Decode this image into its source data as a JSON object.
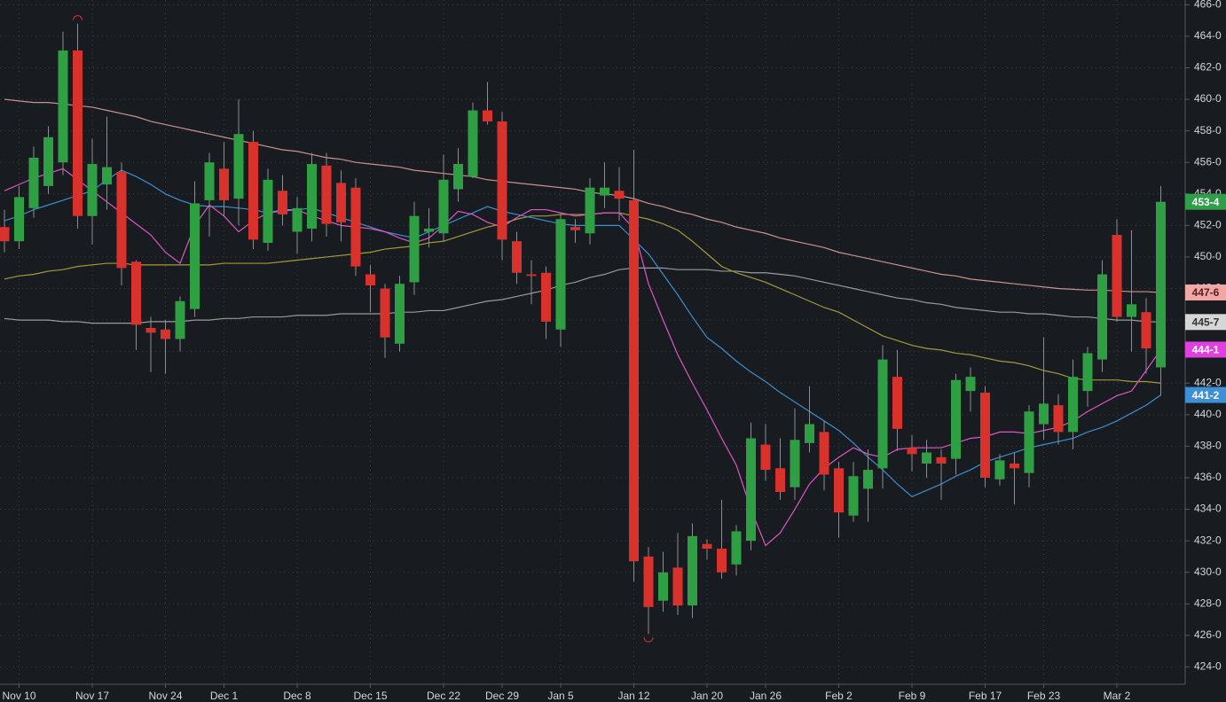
{
  "chart_data": {
    "type": "candlestick",
    "categories": [
      null,
      "Nov 10",
      null,
      null,
      null,
      null,
      "Nov 17",
      null,
      null,
      null,
      null,
      "Nov 24",
      null,
      null,
      null,
      "Dec 1",
      null,
      null,
      null,
      null,
      "Dec 8",
      null,
      null,
      null,
      null,
      "Dec 15",
      null,
      null,
      null,
      null,
      "Dec 22",
      null,
      null,
      null,
      "Dec 29",
      null,
      null,
      null,
      "Jan 5",
      null,
      null,
      null,
      null,
      "Jan 12",
      null,
      null,
      null,
      null,
      "Jan 20",
      null,
      null,
      null,
      "Jan 26",
      null,
      null,
      null,
      null,
      "Feb 2",
      null,
      null,
      null,
      null,
      "Feb 9",
      null,
      null,
      null,
      null,
      "Feb 17",
      null,
      null,
      null,
      "Feb 23",
      null,
      null,
      null,
      null,
      "Mar 2",
      null,
      null,
      null
    ],
    "open": [
      451.9,
      451.0,
      453.1,
      454.5,
      456.0,
      463.1,
      452.6,
      454.6,
      455.4,
      449.7,
      445.5,
      445.4,
      444.8,
      446.7,
      453.6,
      455.6,
      453.7,
      457.3,
      450.9,
      454.2,
      451.6,
      451.8,
      455.8,
      454.7,
      454.4,
      448.9,
      448.0,
      444.5,
      448.4,
      451.6,
      451.5,
      454.3,
      455.1,
      459.3,
      458.6,
      451.0,
      448.9,
      449.0,
      445.4,
      451.9,
      451.5,
      453.9,
      454.2,
      453.6,
      431.0,
      428.2,
      430.3,
      427.9,
      431.8,
      431.5,
      430.5,
      432.0,
      438.1,
      436.6,
      435.4,
      438.2,
      438.9,
      436.6,
      433.6,
      435.3,
      436.6,
      442.4,
      437.9,
      436.9,
      437.3,
      437.2,
      441.5,
      441.4,
      435.9,
      436.9,
      436.3,
      439.4,
      440.6,
      438.9,
      441.5,
      443.5,
      451.4,
      446.2,
      446.5,
      443.0
    ],
    "high": [
      453.0,
      454.5,
      457.0,
      458.3,
      464.3,
      464.8,
      457.5,
      458.9,
      456.0,
      449.8,
      446.2,
      446.0,
      447.5,
      454.8,
      456.6,
      457.3,
      460.0,
      458.0,
      455.6,
      455.2,
      453.8,
      456.6,
      456.6,
      455.5,
      455.0,
      449.5,
      448.3,
      448.8,
      453.5,
      453.1,
      456.5,
      456.9,
      459.8,
      461.1,
      459.2,
      451.6,
      449.8,
      449.4,
      452.8,
      452.4,
      455.0,
      456.0,
      455.7,
      456.8,
      431.6,
      431.3,
      432.5,
      433.1,
      432.1,
      434.6,
      433.0,
      439.5,
      439.4,
      438.5,
      440.4,
      441.8,
      439.6,
      437.0,
      437.0,
      437.8,
      444.4,
      444.1,
      438.7,
      438.4,
      437.8,
      442.6,
      443.0,
      441.8,
      437.5,
      437.6,
      440.6,
      444.9,
      441.3,
      443.5,
      444.3,
      449.8,
      452.4,
      451.7,
      447.4,
      454.5
    ],
    "low": [
      450.3,
      450.5,
      452.5,
      454.0,
      455.2,
      451.8,
      450.8,
      453.0,
      448.2,
      444.1,
      442.7,
      442.6,
      444.0,
      446.2,
      451.3,
      452.6,
      452.0,
      450.5,
      450.4,
      452.0,
      450.2,
      451.0,
      451.3,
      451.0,
      448.8,
      446.5,
      443.6,
      444.0,
      447.6,
      450.6,
      451.0,
      453.5,
      455.0,
      458.4,
      449.8,
      448.3,
      447.0,
      444.8,
      444.3,
      450.9,
      450.8,
      453.1,
      452.3,
      429.4,
      426.1,
      427.5,
      427.3,
      427.1,
      430.8,
      429.6,
      429.8,
      431.4,
      435.8,
      434.6,
      434.6,
      437.6,
      435.2,
      432.2,
      433.2,
      433.2,
      435.3,
      437.7,
      436.4,
      436.0,
      434.6,
      436.2,
      440.2,
      435.4,
      435.5,
      434.3,
      435.4,
      438.4,
      438.1,
      437.8,
      440.5,
      442.7,
      445.9,
      444.0,
      442.6,
      441.2
    ],
    "close": [
      451.0,
      453.8,
      456.3,
      457.6,
      463.1,
      452.6,
      455.9,
      455.7,
      449.3,
      445.7,
      445.2,
      444.8,
      447.2,
      453.4,
      456.0,
      453.6,
      457.8,
      451.1,
      454.9,
      452.7,
      453.1,
      455.9,
      452.1,
      452.2,
      449.4,
      448.2,
      444.9,
      448.3,
      452.6,
      451.8,
      454.9,
      455.9,
      459.3,
      458.6,
      451.1,
      449.0,
      448.8,
      445.9,
      452.4,
      451.7,
      454.4,
      454.4,
      453.7,
      430.7,
      427.8,
      430.0,
      427.9,
      432.3,
      431.5,
      430.0,
      432.6,
      438.5,
      436.5,
      435.1,
      438.4,
      439.4,
      436.2,
      433.8,
      436.1,
      436.5,
      443.5,
      439.1,
      437.5,
      437.6,
      436.9,
      442.2,
      442.4,
      436.0,
      437.1,
      436.6,
      440.2,
      440.7,
      438.9,
      442.4,
      443.9,
      448.9,
      446.2,
      447.0,
      444.2,
      453.5
    ],
    "up_color": "#2ea043",
    "down_color": "#d9322c",
    "series": [
      {
        "color": "#c8938c",
        "values": [
          460.0,
          459.9,
          459.8,
          459.8,
          459.7,
          459.6,
          459.5,
          459.3,
          459.1,
          458.9,
          458.6,
          458.4,
          458.2,
          458.0,
          457.8,
          457.6,
          457.4,
          457.2,
          457.0,
          456.8,
          456.7,
          456.5,
          456.3,
          456.2,
          456.0,
          455.9,
          455.8,
          455.7,
          455.5,
          455.4,
          455.3,
          455.2,
          455.1,
          454.9,
          454.8,
          454.7,
          454.6,
          454.5,
          454.4,
          454.3,
          454.1,
          454.0,
          453.9,
          453.7,
          453.4,
          453.2,
          452.9,
          452.7,
          452.4,
          452.2,
          451.9,
          451.7,
          451.5,
          451.2,
          451.0,
          450.8,
          450.6,
          450.3,
          450.1,
          449.9,
          449.7,
          449.5,
          449.3,
          449.1,
          448.9,
          448.8,
          448.6,
          448.5,
          448.4,
          448.3,
          448.2,
          448.1,
          448.0,
          447.95,
          447.9,
          447.9,
          447.85,
          447.8,
          447.8,
          447.75
        ]
      },
      {
        "color": "#9a9a9a",
        "values": [
          446.1,
          446.0,
          446.0,
          446.0,
          445.9,
          445.9,
          445.8,
          445.8,
          445.8,
          445.8,
          445.9,
          445.9,
          445.9,
          446.0,
          446.0,
          446.1,
          446.1,
          446.2,
          446.2,
          446.2,
          446.3,
          446.3,
          446.3,
          446.4,
          446.4,
          446.4,
          446.4,
          446.5,
          446.5,
          446.6,
          446.6,
          446.8,
          447.0,
          447.2,
          447.3,
          447.5,
          447.7,
          447.9,
          448.2,
          448.4,
          448.7,
          448.9,
          449.2,
          449.3,
          449.3,
          449.3,
          449.2,
          449.2,
          449.2,
          449.1,
          449.1,
          449.0,
          449.0,
          448.9,
          448.8,
          448.6,
          448.4,
          448.2,
          448.0,
          447.8,
          447.6,
          447.4,
          447.3,
          447.1,
          447.0,
          446.8,
          446.7,
          446.6,
          446.5,
          446.5,
          446.4,
          446.4,
          446.3,
          446.2,
          446.2,
          446.1,
          446.0,
          446.0,
          445.9,
          445.875
        ]
      },
      {
        "color": "#a59a3a",
        "values": [
          448.6,
          448.8,
          448.9,
          449.1,
          449.2,
          449.4,
          449.5,
          449.6,
          449.6,
          449.5,
          449.5,
          449.5,
          449.5,
          449.5,
          449.5,
          449.6,
          449.6,
          449.6,
          449.6,
          449.7,
          449.8,
          449.9,
          450.0,
          450.1,
          450.2,
          450.3,
          450.5,
          450.6,
          450.7,
          450.9,
          451.0,
          451.3,
          451.6,
          451.9,
          452.1,
          452.4,
          452.6,
          452.6,
          452.7,
          452.7,
          452.7,
          452.8,
          452.8,
          452.6,
          452.4,
          452.1,
          451.7,
          451.0,
          450.2,
          449.4,
          449.0,
          448.7,
          448.4,
          448.0,
          447.6,
          447.2,
          446.8,
          446.5,
          446.0,
          445.5,
          445.0,
          444.7,
          444.4,
          444.2,
          444.1,
          443.9,
          443.8,
          443.6,
          443.4,
          443.3,
          443.1,
          442.8,
          442.6,
          442.3,
          442.2,
          442.2,
          442.2,
          442.1,
          442.1,
          442.0
        ]
      },
      {
        "color": "#3b8fd4",
        "values": [
          452.3,
          452.6,
          453.0,
          453.3,
          453.6,
          453.9,
          454.2,
          454.9,
          455.5,
          455.1,
          454.6,
          454.0,
          453.6,
          453.3,
          453.2,
          453.2,
          453.1,
          453.0,
          452.8,
          452.9,
          453.0,
          453.1,
          452.8,
          452.5,
          452.2,
          451.9,
          451.6,
          451.4,
          451.2,
          451.6,
          452.0,
          452.4,
          452.8,
          453.2,
          452.9,
          452.7,
          452.5,
          452.3,
          452.1,
          452.0,
          452.0,
          452.0,
          452.0,
          451.1,
          450.2,
          448.9,
          447.6,
          446.2,
          444.9,
          444.2,
          443.4,
          442.7,
          442.1,
          441.4,
          440.8,
          440.2,
          439.6,
          439.0,
          438.2,
          437.3,
          436.5,
          435.6,
          434.8,
          435.2,
          435.6,
          436.1,
          436.5,
          437.0,
          437.3,
          437.6,
          437.9,
          438.1,
          438.3,
          438.5,
          438.9,
          439.2,
          439.6,
          440.1,
          440.6,
          441.25
        ]
      },
      {
        "color": "#e056c8",
        "values": [
          454.2,
          454.6,
          455.0,
          455.3,
          455.6,
          454.9,
          454.2,
          453.5,
          452.8,
          452.1,
          451.4,
          450.3,
          449.6,
          452.0,
          453.3,
          452.6,
          451.6,
          452.3,
          452.8,
          453.0,
          453.0,
          452.6,
          452.3,
          452.0,
          451.9,
          451.8,
          451.6,
          451.2,
          450.9,
          451.2,
          452.0,
          452.9,
          452.7,
          452.2,
          451.9,
          452.5,
          453.0,
          453.0,
          452.8,
          452.6,
          452.7,
          452.8,
          452.8,
          451.8,
          448.3,
          446.0,
          443.8,
          442.0,
          440.3,
          438.5,
          436.8,
          434.0,
          431.7,
          432.5,
          434.0,
          435.6,
          436.6,
          437.3,
          437.9,
          437.5,
          437.3,
          437.8,
          437.9,
          437.9,
          437.9,
          438.2,
          438.5,
          438.6,
          438.9,
          438.9,
          438.8,
          439.0,
          439.2,
          439.6,
          440.2,
          440.7,
          441.2,
          441.5,
          442.8,
          444.125
        ]
      }
    ],
    "price_tags": [
      {
        "value": 453.5,
        "label": "453-4",
        "color": "#2e9e48",
        "text_color": "#ffffff"
      },
      {
        "value": 447.75,
        "label": "447-6",
        "color": "#f2a7a7",
        "text_color": "#5a2020"
      },
      {
        "value": 445.875,
        "label": "445-7",
        "color": "#d6d6d6",
        "text_color": "#333333"
      },
      {
        "value": 444.125,
        "label": "444-1",
        "color": "#e040e0",
        "text_color": "#ffffff"
      },
      {
        "value": 441.25,
        "label": "441-2",
        "color": "#3d8fd6",
        "text_color": "#ffffff"
      }
    ],
    "ylim": [
      422.9,
      466.3
    ],
    "yticks": [
      {
        "value": 424,
        "label": "424-0"
      },
      {
        "value": 426,
        "label": "426-0"
      },
      {
        "value": 428,
        "label": "428-0"
      },
      {
        "value": 430,
        "label": "430-0"
      },
      {
        "value": 432,
        "label": "432-0"
      },
      {
        "value": 434,
        "label": "434-0"
      },
      {
        "value": 436,
        "label": "436-0"
      },
      {
        "value": 438,
        "label": "438-0"
      },
      {
        "value": 440,
        "label": "440-0"
      },
      {
        "value": 442,
        "label": "442-0"
      },
      {
        "value": 444,
        "label": "444-0"
      },
      {
        "value": 446,
        "label": "446-0"
      },
      {
        "value": 448,
        "label": "448-0"
      },
      {
        "value": 450,
        "label": "450-0"
      },
      {
        "value": 452,
        "label": "452-0"
      },
      {
        "value": 454,
        "label": "454-0"
      },
      {
        "value": 456,
        "label": "456-0"
      },
      {
        "value": 458,
        "label": "458-0"
      },
      {
        "value": 460,
        "label": "460-0"
      },
      {
        "value": 462,
        "label": "462-0"
      },
      {
        "value": 464,
        "label": "464-0"
      },
      {
        "value": 466,
        "label": "466-0"
      }
    ],
    "grid": true
  }
}
